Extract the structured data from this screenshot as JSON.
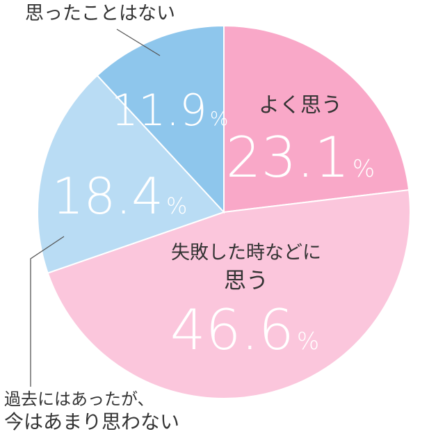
{
  "chart_data": {
    "type": "pie",
    "title": "",
    "unit": "%",
    "slices": [
      {
        "label": "よく思う",
        "value": 23.1,
        "value_text": "23.1",
        "color": "#f9a8c8"
      },
      {
        "label_lines": [
          "失敗した時などに",
          "思う"
        ],
        "value": 46.6,
        "value_text": "46.6",
        "color": "#fbc6dc"
      },
      {
        "label_lines": [
          "過去にはあったが、",
          "今はあまり思わない"
        ],
        "value": 18.4,
        "value_text": "18.4",
        "color": "#b9dcf4"
      },
      {
        "label": "思ったことはない",
        "value": 11.9,
        "value_text": "11.9",
        "color": "#8ec6ec"
      }
    ]
  }
}
